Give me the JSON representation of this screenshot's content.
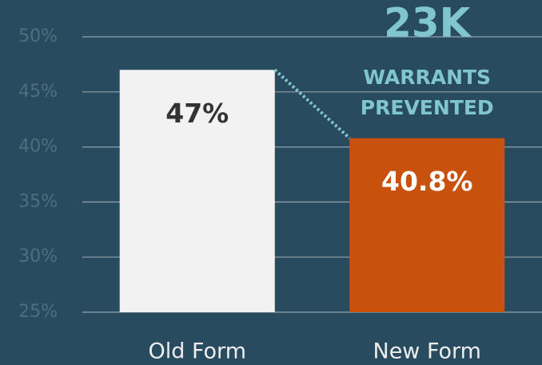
{
  "chart_data": {
    "type": "bar",
    "categories": [
      "Old Form",
      "New Form"
    ],
    "values": [
      47,
      40.8
    ],
    "value_labels": [
      "47%",
      "40.8%"
    ],
    "colors": [
      "#f2f2f2",
      "#c9510e"
    ],
    "value_label_colors": [
      "#333333",
      "#ffffff"
    ],
    "ylim": [
      25,
      50
    ],
    "yticks": [
      {
        "value": 25,
        "label": "25%"
      },
      {
        "value": 30,
        "label": "30%"
      },
      {
        "value": 35,
        "label": "35%"
      },
      {
        "value": 40,
        "label": "40%"
      },
      {
        "value": 45,
        "label": "45%"
      },
      {
        "value": 50,
        "label": "50%"
      }
    ],
    "grid": true,
    "annotation": {
      "headline": "23K",
      "lines": [
        "WARRANTS",
        "PREVENTED"
      ],
      "color": "#80c6d0"
    }
  }
}
